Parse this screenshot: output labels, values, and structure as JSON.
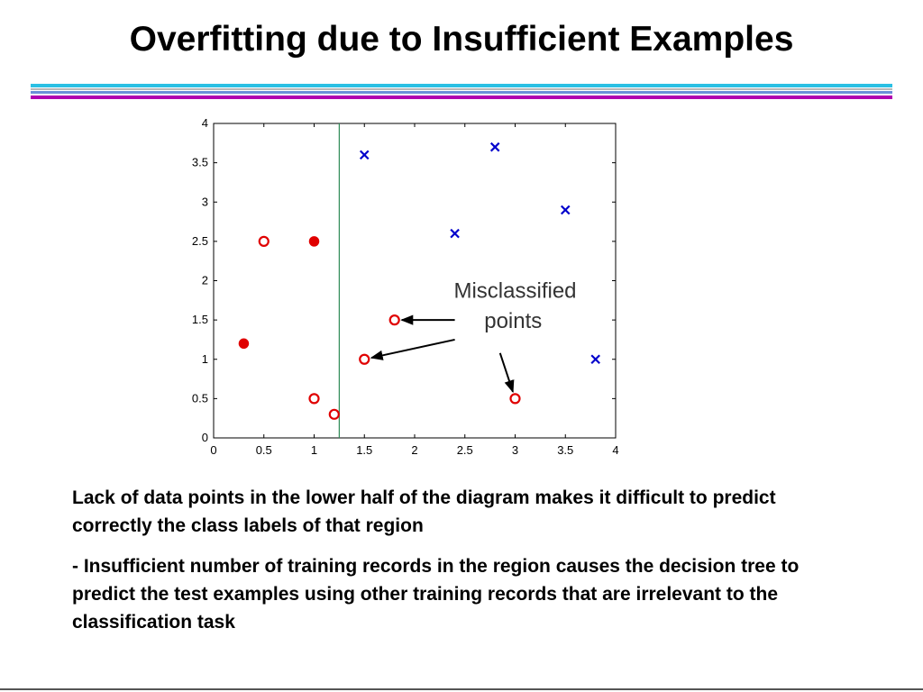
{
  "slide": {
    "title": "Overfitting due to Insufficient Examples",
    "paragraph_1": "Lack of data points in the lower half of the diagram makes it difficult to predict correctly the class labels of that region",
    "paragraph_2": "- Insufficient number of training records in the region causes the decision tree to predict the test examples using other training records that are irrelevant to the classification task"
  },
  "colors": {
    "title_rule_cyan": "#2bc0e4",
    "title_rule_magenta": "#b000b0",
    "circle_class": "#e00000",
    "cross_class": "#0000cc",
    "decision_boundary": "#2e8b57"
  },
  "chart_data": {
    "type": "scatter",
    "title": "",
    "xlabel": "",
    "ylabel": "",
    "xlim": [
      0,
      4
    ],
    "ylim": [
      0,
      4
    ],
    "x_ticks": [
      "0",
      "0.5",
      "1",
      "1.5",
      "2",
      "2.5",
      "3",
      "3.5",
      "4"
    ],
    "y_ticks": [
      "0",
      "0.5",
      "1",
      "1.5",
      "2",
      "2.5",
      "3",
      "3.5",
      "4"
    ],
    "grid": false,
    "series": [
      {
        "marker": "circle-filled",
        "color": "#e00000",
        "points": [
          [
            1.0,
            2.5
          ],
          [
            0.3,
            1.2
          ]
        ]
      },
      {
        "marker": "circle-open",
        "color": "#e00000",
        "points": [
          [
            0.5,
            2.5
          ],
          [
            1.0,
            0.5
          ],
          [
            1.2,
            0.3
          ],
          [
            1.8,
            1.5
          ],
          [
            1.5,
            1.0
          ],
          [
            3.0,
            0.5
          ]
        ]
      },
      {
        "marker": "cross",
        "color": "#0000cc",
        "points": [
          [
            1.5,
            3.6
          ],
          [
            2.8,
            3.7
          ],
          [
            2.4,
            2.6
          ],
          [
            3.5,
            2.9
          ],
          [
            3.8,
            1.0
          ]
        ]
      }
    ],
    "decision_boundary_x": 1.25,
    "annotation": {
      "text_line_1": "Misclassified",
      "text_line_2": "points",
      "points": [
        [
          1.8,
          1.5
        ],
        [
          1.5,
          1.0
        ],
        [
          3.0,
          0.5
        ]
      ]
    }
  }
}
